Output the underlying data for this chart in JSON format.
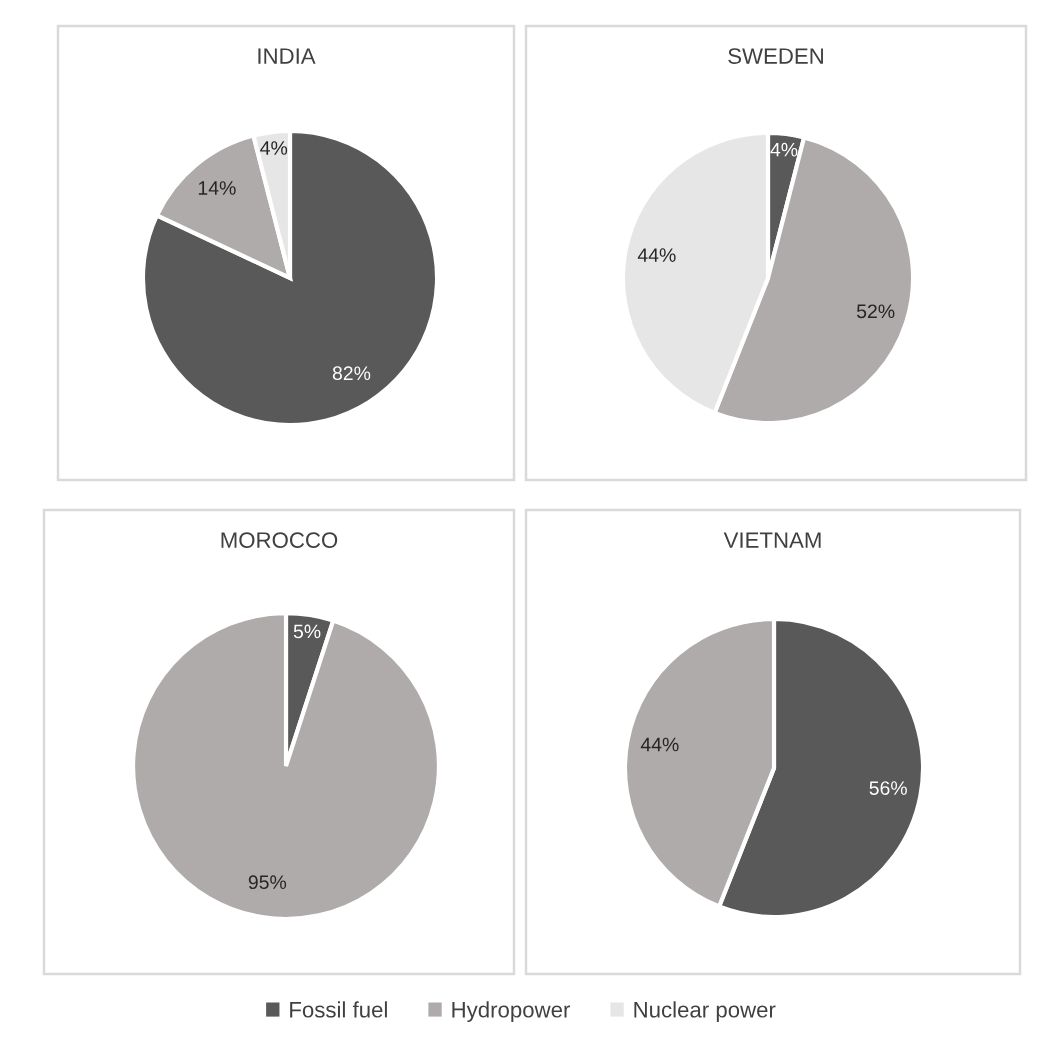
{
  "chart_data": [
    {
      "type": "pie",
      "title": "INDIA",
      "categories": [
        "Fossil fuel",
        "Hydropower",
        "Nuclear power"
      ],
      "values": [
        82,
        14,
        4
      ],
      "colors": [
        "#595959",
        "#afabab",
        "#e7e6e6"
      ],
      "value_labels": [
        "82%",
        "14%",
        "4%"
      ],
      "legend": "bottom"
    },
    {
      "type": "pie",
      "title": "SWEDEN",
      "categories": [
        null,
        null,
        null
      ],
      "values": [
        4,
        52,
        44
      ],
      "colors": [
        "#595959",
        "#afabab",
        "#e7e6e6"
      ],
      "value_labels": [
        "4%",
        "52%",
        "44%"
      ]
    },
    {
      "type": "pie",
      "title": "MOROCCO",
      "categories": [
        null,
        null
      ],
      "values": [
        5,
        95
      ],
      "colors": [
        "#595959",
        "#afabab"
      ],
      "value_labels": [
        "5%",
        "95%"
      ]
    },
    {
      "type": "pie",
      "title": "VIETNAM",
      "categories": [
        null,
        null
      ],
      "values": [
        56,
        44
      ],
      "colors": [
        "#595959",
        "#afabab"
      ],
      "value_labels": [
        "56%",
        "44%"
      ]
    }
  ]
}
